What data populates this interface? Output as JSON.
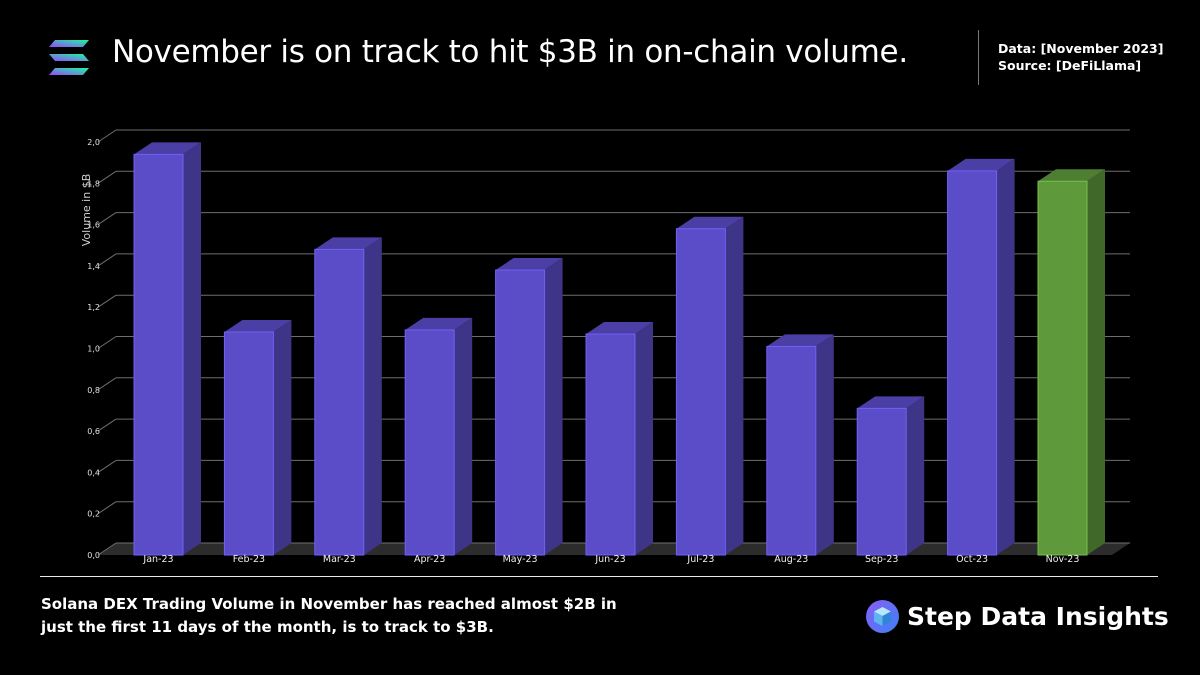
{
  "header": {
    "logo_icon": "solana-logo-icon",
    "title": "November is on track to hit $3B in on-chain volume.",
    "data_label": "Data: [November 2023]",
    "source_label": "Source: [DeFiLlama]"
  },
  "chart_data": {
    "type": "bar",
    "title": "November is on track to hit $3B in on-chain volume.",
    "xlabel": "",
    "ylabel": "Volume in $B",
    "ylim": [
      0,
      2.0
    ],
    "y_ticks": [
      "0,0",
      "0,2",
      "0,4",
      "0,6",
      "0,8",
      "1,0",
      "1,2",
      "1,4",
      "1,6",
      "1,8",
      "2,0"
    ],
    "categories": [
      "Jan-23",
      "Feb-23",
      "Mar-23",
      "Apr-23",
      "May-23",
      "Jun-23",
      "Jul-23",
      "Aug-23",
      "Sep-23",
      "Oct-23",
      "Nov-23"
    ],
    "values": [
      1.94,
      1.08,
      1.48,
      1.09,
      1.38,
      1.07,
      1.58,
      1.01,
      0.71,
      1.86,
      1.81
    ],
    "colors": [
      "#5b4cc8",
      "#5b4cc8",
      "#5b4cc8",
      "#5b4cc8",
      "#5b4cc8",
      "#5b4cc8",
      "#5b4cc8",
      "#5b4cc8",
      "#5b4cc8",
      "#5b4cc8",
      "#5e9a3c"
    ],
    "grid": true
  },
  "footer": {
    "caption": "Solana DEX Trading Volume in November has reached almost $2B in just the first 11 days of the month, is to track to $3B.",
    "brand_name": "Step Data Insights",
    "brand_icon": "step-cube-logo-icon"
  }
}
